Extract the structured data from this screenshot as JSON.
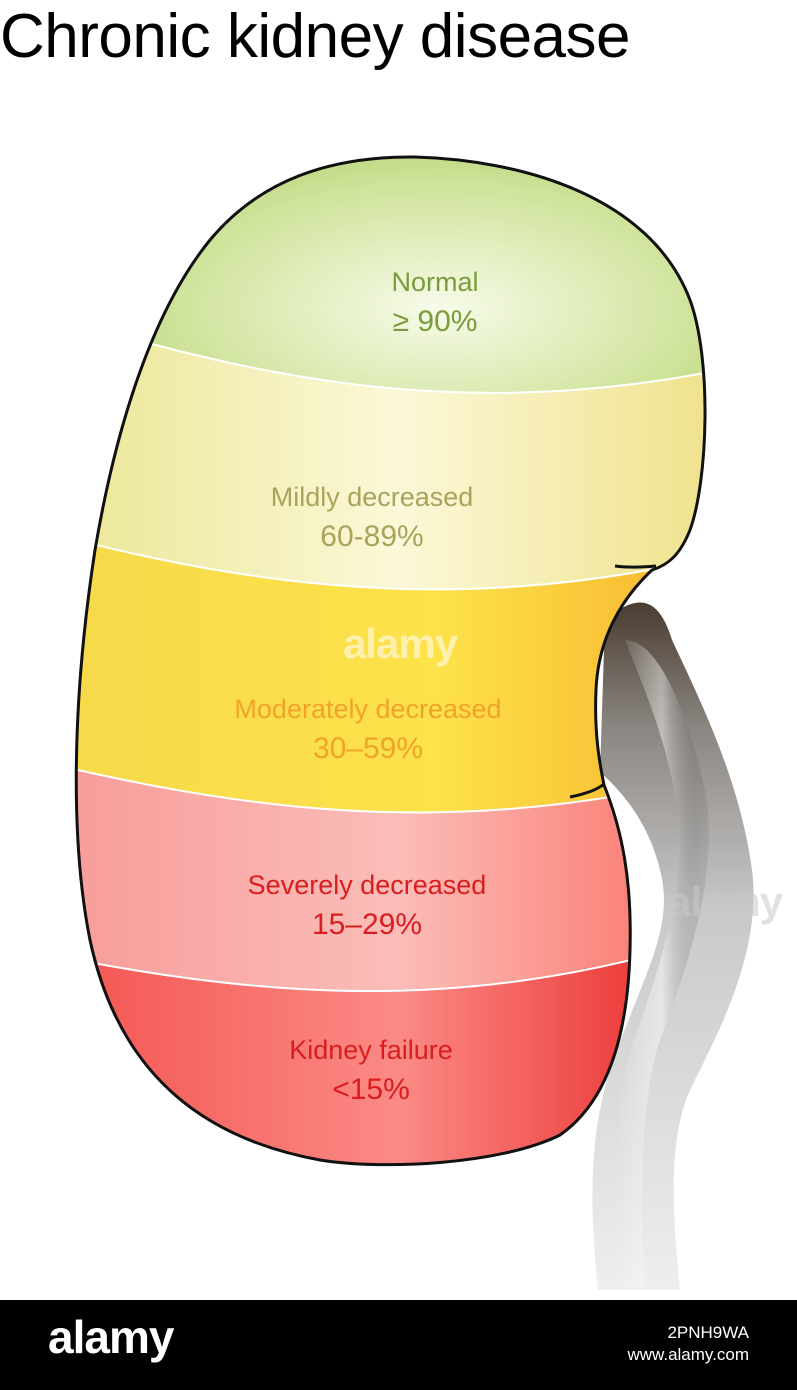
{
  "title": "Chronic kidney disease",
  "stages": [
    {
      "name": "Normal",
      "range": "≥ 90%",
      "color": "#7a9c3c"
    },
    {
      "name": "Mildly decreased",
      "range": "60-89%",
      "color": "#aaa35e"
    },
    {
      "name": "Moderately decreased",
      "range": "30–59%",
      "color": "#f2a22a"
    },
    {
      "name": "Severely decreased",
      "range": "15–29%",
      "color": "#d81e1e"
    },
    {
      "name": "Kidney failure",
      "range": "<15%",
      "color": "#d81e1e"
    }
  ],
  "watermark": {
    "text": "alamy"
  },
  "footer": {
    "logo": "alamy",
    "image_id": "2PNH9WA",
    "site": "www.alamy.com"
  }
}
